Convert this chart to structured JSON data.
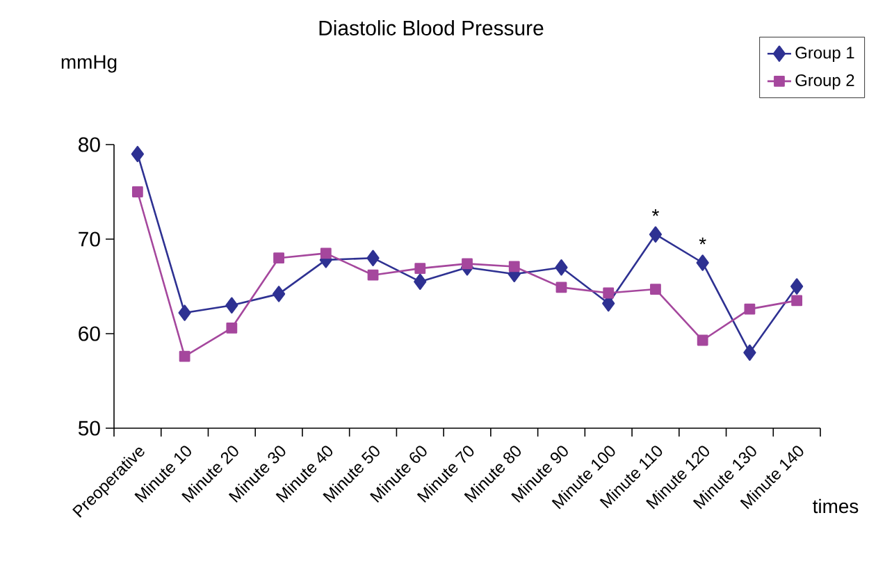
{
  "chart_data": {
    "type": "line",
    "title": "Diastolic Blood Pressure",
    "ylabel": "mmHg",
    "xlabel": "times",
    "categories": [
      "Preoperative",
      "Minute 10",
      "Minute 20",
      "Minute 30",
      "Minute 40",
      "Minute 50",
      "Minute 60",
      "Minute 70",
      "Minute 80",
      "Minute 90",
      "Minute 100",
      "Minute 110",
      "Minute 120",
      "Minute 130",
      "Minute 140"
    ],
    "series": [
      {
        "name": "Group 1",
        "color": "#2e3192",
        "marker": "diamond",
        "values": [
          79,
          62.2,
          63,
          64.2,
          67.8,
          68,
          65.5,
          67,
          66.3,
          67,
          63.2,
          70.5,
          67.5,
          58,
          65
        ]
      },
      {
        "name": "Group 2",
        "color": "#a5479d",
        "marker": "square",
        "values": [
          75,
          57.6,
          60.6,
          68,
          68.5,
          66.2,
          66.9,
          67.4,
          67.1,
          64.9,
          64.3,
          64.7,
          59.3,
          62.6,
          63.5
        ]
      }
    ],
    "ylim": [
      50,
      80
    ],
    "yticks": [
      50,
      60,
      70,
      80
    ],
    "grid": false,
    "legend": "top right",
    "annotations": [
      {
        "text": "*",
        "x": "Minute 110",
        "y": 70.5
      },
      {
        "text": "*",
        "x": "Minute 120",
        "y": 67.5
      }
    ]
  }
}
